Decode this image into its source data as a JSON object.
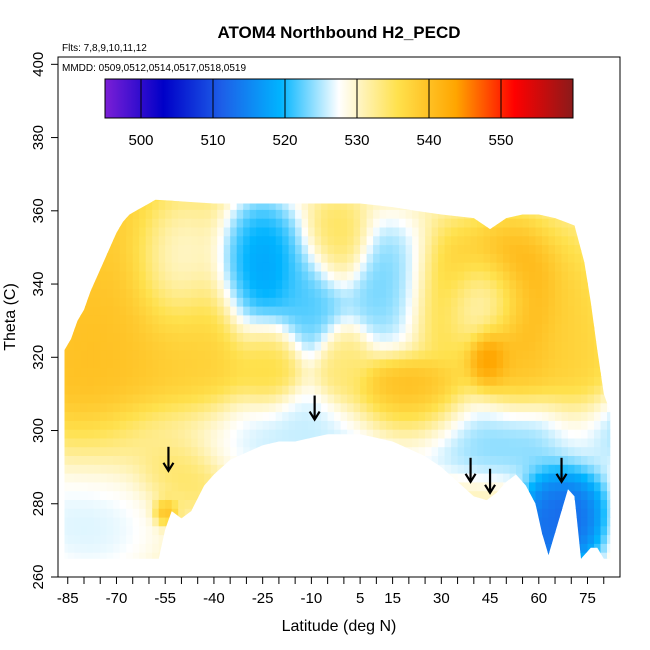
{
  "chart_data": {
    "type": "heatmap",
    "title": "ATOM4 Northbound H2_PECD",
    "annotations": {
      "flights": "Flts: 7,8,9,10,11,12",
      "dates": "MMDD: 0509,0512,0514,0517,0518,0519"
    },
    "xlabel": "Latitude (deg N)",
    "ylabel": "Theta (C)",
    "xlim": [
      -88,
      85
    ],
    "ylim": [
      260,
      402
    ],
    "x_ticks": [
      -85,
      -70,
      -55,
      -40,
      -25,
      -10,
      5,
      15,
      30,
      45,
      60,
      75
    ],
    "x_tick_labels": [
      "-85",
      "-70",
      "-55",
      "-40",
      "-25",
      "-10",
      "5",
      "15",
      "30",
      "45",
      "60",
      "75"
    ],
    "x_minor_ticks": [
      -80,
      -75,
      -65,
      -60,
      -50,
      -45,
      -35,
      -30,
      -20,
      -15,
      -5,
      0,
      10,
      20,
      25,
      35,
      40,
      50,
      55,
      65,
      70,
      80
    ],
    "y_ticks": [
      260,
      280,
      300,
      320,
      340,
      360,
      380,
      400
    ],
    "y_tick_labels": [
      "260",
      "280",
      "300",
      "320",
      "340",
      "360",
      "380",
      "400"
    ],
    "colorbar": {
      "min": 495,
      "max": 560,
      "ticks": [
        500,
        510,
        520,
        530,
        540,
        550
      ],
      "tick_labels": [
        "500",
        "510",
        "520",
        "530",
        "540",
        "550"
      ],
      "colors": [
        "#7b1fd6",
        "#0000c8",
        "#1d5fe8",
        "#00b4ff",
        "#ffffff",
        "#ffe14d",
        "#ffa500",
        "#ff0000",
        "#8b1a1a"
      ]
    },
    "data_extent": {
      "top_boundary": [
        [
          -86,
          322
        ],
        [
          -84,
          325
        ],
        [
          -82,
          330
        ],
        [
          -80,
          333
        ],
        [
          -78,
          338
        ],
        [
          -76,
          342
        ],
        [
          -74,
          346
        ],
        [
          -72,
          350
        ],
        [
          -70,
          354
        ],
        [
          -68,
          357
        ],
        [
          -66,
          359
        ],
        [
          -64,
          360
        ],
        [
          -62,
          361
        ],
        [
          -60,
          362
        ],
        [
          -58,
          363
        ],
        [
          -40,
          362
        ],
        [
          -20,
          362
        ],
        [
          -8,
          362
        ],
        [
          5,
          362
        ],
        [
          15,
          361
        ],
        [
          22,
          360
        ],
        [
          30,
          359
        ],
        [
          40,
          358
        ],
        [
          45,
          355
        ],
        [
          50,
          358
        ],
        [
          55,
          359
        ],
        [
          60,
          359
        ],
        [
          65,
          358
        ],
        [
          68,
          357
        ],
        [
          71,
          356
        ],
        [
          74,
          346
        ],
        [
          76,
          335
        ],
        [
          78,
          322
        ],
        [
          80,
          310
        ],
        [
          82,
          305
        ]
      ],
      "bottom_boundary": [
        [
          82,
          265
        ],
        [
          80,
          265
        ],
        [
          78,
          268
        ],
        [
          76,
          268
        ],
        [
          73,
          265
        ],
        [
          71,
          282
        ],
        [
          69,
          284
        ],
        [
          67,
          278
        ],
        [
          65,
          272
        ],
        [
          63,
          266
        ],
        [
          61,
          272
        ],
        [
          59,
          280
        ],
        [
          56,
          285
        ],
        [
          53,
          288
        ],
        [
          50,
          286
        ],
        [
          47,
          283
        ],
        [
          44,
          281
        ],
        [
          40,
          282
        ],
        [
          35,
          286
        ],
        [
          30,
          290
        ],
        [
          25,
          293
        ],
        [
          20,
          295
        ],
        [
          15,
          297
        ],
        [
          10,
          298
        ],
        [
          5,
          299
        ],
        [
          0,
          299
        ],
        [
          -5,
          299
        ],
        [
          -10,
          298
        ],
        [
          -15,
          297
        ],
        [
          -20,
          297
        ],
        [
          -25,
          296
        ],
        [
          -30,
          294
        ],
        [
          -35,
          292
        ],
        [
          -40,
          288
        ],
        [
          -43,
          285
        ],
        [
          -47,
          278
        ],
        [
          -50,
          276
        ],
        [
          -53,
          278
        ],
        [
          -55,
          273
        ],
        [
          -57,
          265
        ],
        [
          -80,
          265
        ],
        [
          -84,
          265
        ],
        [
          -86,
          265
        ]
      ]
    },
    "field_features": [
      {
        "x": -62,
        "y": 332,
        "sx": 14,
        "sy": 25,
        "value": 540
      },
      {
        "x": -78,
        "y": 318,
        "sx": 10,
        "sy": 15,
        "value": 541
      },
      {
        "x": -45,
        "y": 320,
        "sx": 9,
        "sy": 12,
        "value": 538
      },
      {
        "x": -52,
        "y": 345,
        "sx": 7,
        "sy": 10,
        "value": 524
      },
      {
        "x": -27,
        "y": 343,
        "sx": 7,
        "sy": 10,
        "value": 516
      },
      {
        "x": -10,
        "y": 337,
        "sx": 6,
        "sy": 8,
        "value": 521
      },
      {
        "x": -2,
        "y": 350,
        "sx": 5,
        "sy": 6,
        "value": 536
      },
      {
        "x": -24,
        "y": 318,
        "sx": 5,
        "sy": 7,
        "value": 537
      },
      {
        "x": 0,
        "y": 318,
        "sx": 4,
        "sy": 6,
        "value": 534
      },
      {
        "x": 14,
        "y": 340,
        "sx": 8,
        "sy": 8,
        "value": 522
      },
      {
        "x": 34,
        "y": 338,
        "sx": 8,
        "sy": 8,
        "value": 540
      },
      {
        "x": 20,
        "y": 307,
        "sx": 10,
        "sy": 6,
        "value": 543
      },
      {
        "x": 43,
        "y": 335,
        "sx": 7,
        "sy": 6,
        "value": 522
      },
      {
        "x": 52,
        "y": 336,
        "sx": 8,
        "sy": 10,
        "value": 544
      },
      {
        "x": 54,
        "y": 316,
        "sx": 8,
        "sy": 8,
        "value": 540
      },
      {
        "x": 70,
        "y": 320,
        "sx": 6,
        "sy": 15,
        "value": 538
      },
      {
        "x": 45,
        "y": 320,
        "sx": 3,
        "sy": 4,
        "value": 548
      },
      {
        "x": 55,
        "y": 300,
        "sx": 20,
        "sy": 6,
        "value": 522
      },
      {
        "x": 68,
        "y": 278,
        "sx": 6,
        "sy": 8,
        "value": 510
      },
      {
        "x": 60,
        "y": 270,
        "sx": 3,
        "sy": 5,
        "value": 512
      },
      {
        "x": -20,
        "y": 300,
        "sx": 30,
        "sy": 6,
        "value": 525
      },
      {
        "x": -75,
        "y": 280,
        "sx": 12,
        "sy": 10,
        "value": 525
      },
      {
        "x": -52,
        "y": 290,
        "sx": 6,
        "sy": 6,
        "value": 535
      },
      {
        "x": -55,
        "y": 278,
        "sx": 2,
        "sy": 2,
        "value": 544
      }
    ],
    "field_background": 531,
    "arrows": [
      [
        -54,
        289
      ],
      [
        -9,
        303
      ],
      [
        39,
        286
      ],
      [
        45,
        283
      ],
      [
        67,
        286
      ]
    ]
  }
}
